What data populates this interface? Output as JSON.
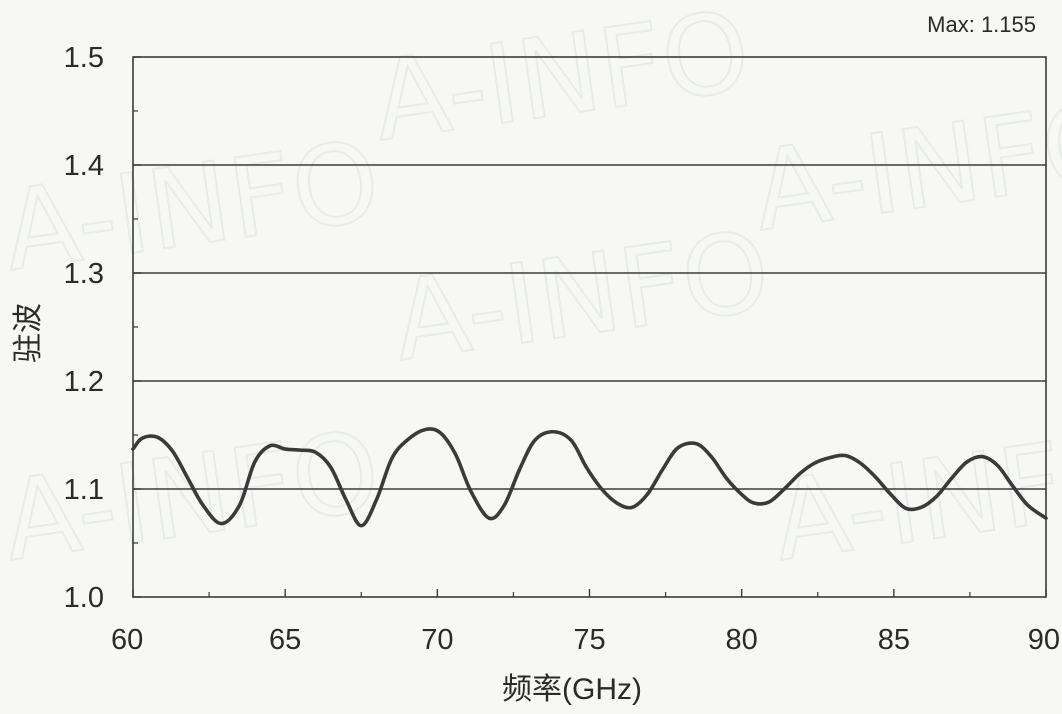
{
  "chart_data": {
    "type": "line",
    "xlabel": "频率(GHz)",
    "ylabel": "驻波",
    "annotation": "Max: 1.155",
    "xlim": [
      60,
      90
    ],
    "ylim": [
      1.0,
      1.5
    ],
    "x_ticks": [
      60,
      65,
      70,
      75,
      80,
      85,
      90
    ],
    "x_tick_labels": [
      "60",
      "65",
      "70",
      "75",
      "80",
      "85",
      "90"
    ],
    "y_ticks": [
      1.0,
      1.1,
      1.2,
      1.3,
      1.4,
      1.5
    ],
    "y_tick_labels": [
      "1.0",
      "1.1",
      "1.2",
      "1.3",
      "1.4",
      "1.5"
    ],
    "grid": "horizontal",
    "line_color": "#3a3a3a",
    "series": [
      {
        "x": [
          60.0,
          60.3,
          60.8,
          61.3,
          61.8,
          62.3,
          62.9,
          63.5,
          64.0,
          64.5,
          65.0,
          65.5,
          66.0,
          66.5,
          67.0,
          67.5,
          68.0,
          68.5,
          69.0,
          69.6,
          70.1,
          70.6,
          71.1,
          71.7,
          72.2,
          72.7,
          73.2,
          73.8,
          74.4,
          74.9,
          75.4,
          75.9,
          76.4,
          76.9,
          77.4,
          77.9,
          78.5,
          79.0,
          79.5,
          80.0,
          80.4,
          80.9,
          81.4,
          81.9,
          82.4,
          82.9,
          83.4,
          83.9,
          84.4,
          84.9,
          85.4,
          85.9,
          86.4,
          86.9,
          87.4,
          87.9,
          88.4,
          88.9,
          89.4,
          90.0
        ],
        "y": [
          1.137,
          1.147,
          1.148,
          1.135,
          1.11,
          1.085,
          1.068,
          1.085,
          1.125,
          1.14,
          1.137,
          1.136,
          1.134,
          1.12,
          1.09,
          1.066,
          1.09,
          1.128,
          1.145,
          1.155,
          1.152,
          1.132,
          1.098,
          1.073,
          1.085,
          1.118,
          1.145,
          1.153,
          1.145,
          1.12,
          1.1,
          1.087,
          1.083,
          1.095,
          1.118,
          1.138,
          1.142,
          1.13,
          1.11,
          1.095,
          1.087,
          1.088,
          1.1,
          1.114,
          1.124,
          1.129,
          1.131,
          1.124,
          1.111,
          1.095,
          1.082,
          1.083,
          1.093,
          1.11,
          1.125,
          1.13,
          1.122,
          1.103,
          1.085,
          1.073
        ]
      }
    ]
  }
}
